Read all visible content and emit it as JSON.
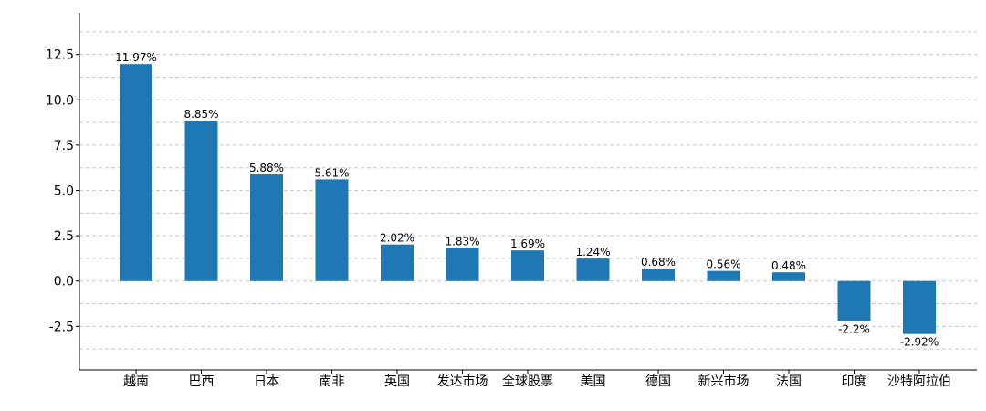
{
  "chart_data": {
    "type": "bar",
    "title": "",
    "xlabel": "",
    "ylabel": "",
    "categories": [
      "越南",
      "巴西",
      "日本",
      "南非",
      "英国",
      "发达市场",
      "全球股票",
      "美国",
      "德国",
      "新兴市场",
      "法国",
      "印度",
      "沙特阿拉伯"
    ],
    "values": [
      11.97,
      8.85,
      5.88,
      5.61,
      2.02,
      1.83,
      1.69,
      1.24,
      0.68,
      0.56,
      0.48,
      -2.2,
      -2.92
    ],
    "data_labels": [
      "11.97%",
      "8.85%",
      "5.88%",
      "5.61%",
      "2.02%",
      "1.83%",
      "1.69%",
      "1.24%",
      "0.68%",
      "0.56%",
      "0.48%",
      "-2.2%",
      "-2.92%"
    ],
    "yticks": [
      -2.5,
      0.0,
      2.5,
      5.0,
      7.5,
      10.0,
      12.5
    ],
    "ytick_labels": [
      "-2.5",
      "0.0",
      "2.5",
      "5.0",
      "7.5",
      "10.0",
      "12.5"
    ],
    "ylim": [
      -4.9,
      14.8
    ],
    "grid": true,
    "bar_color": "#1f77b4",
    "grid_color": "#c8c8c8"
  }
}
